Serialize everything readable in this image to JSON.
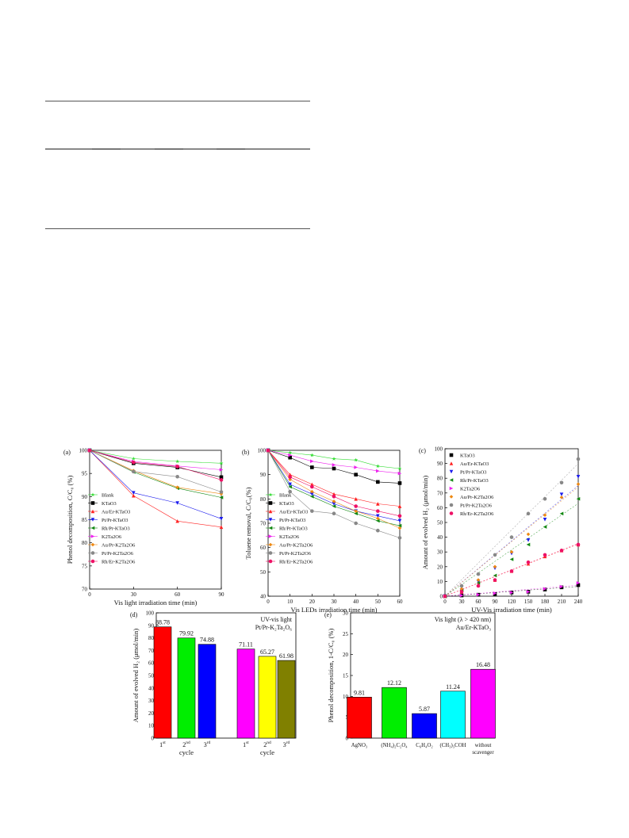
{
  "chart_data": [
    {
      "type": "line",
      "panel_label": "(a)",
      "xlabel": "Vis light irradiation time (min)",
      "ylabel": "Phenol decomposition, C/C₀ (%)",
      "x": [
        0,
        30,
        60,
        90
      ],
      "xlim": [
        0,
        90
      ],
      "xticks": [
        0,
        30,
        60,
        90
      ],
      "ylim": [
        70,
        100
      ],
      "yticks": [
        70,
        75,
        80,
        85,
        90,
        95,
        100
      ],
      "legend_position": "bottom-left",
      "series": [
        {
          "name": "Blank",
          "color": "#33dd33",
          "marker": "star",
          "values": [
            100,
            98.2,
            97.6,
            97.2
          ]
        },
        {
          "name": "KTaO3",
          "color": "#000000",
          "marker": "square",
          "values": [
            100,
            97.2,
            96.3,
            94.2
          ]
        },
        {
          "name": "Au/Er-KTaO3",
          "color": "#ff2222",
          "marker": "triangle-up",
          "values": [
            100,
            90.2,
            84.7,
            83.4
          ]
        },
        {
          "name": "Pt/Pr-KTaO3",
          "color": "#1a1aee",
          "marker": "triangle-down",
          "values": [
            100,
            90.8,
            88.6,
            85.2
          ]
        },
        {
          "name": "Rh/Pr-KTaO3",
          "color": "#118811",
          "marker": "triangle-left",
          "values": [
            100,
            95.3,
            91.8,
            89.8
          ]
        },
        {
          "name": "K2Ta2O6",
          "color": "#ee22ee",
          "marker": "triangle-right",
          "values": [
            100,
            97.6,
            96.6,
            95.8
          ]
        },
        {
          "name": "Au/Pr-K2Ta2O6",
          "color": "#ee8811",
          "marker": "diamond",
          "values": [
            100,
            95.6,
            92.0,
            90.6
          ]
        },
        {
          "name": "Pt/Pr-K2Ta2O6",
          "color": "#888888",
          "marker": "circle",
          "values": [
            100,
            95.4,
            94.3,
            91.0
          ]
        },
        {
          "name": "Rh/Er-K2Ta2O6",
          "color": "#ee1166",
          "marker": "circle",
          "values": [
            100,
            97.4,
            96.5,
            93.6
          ]
        }
      ]
    },
    {
      "type": "line",
      "panel_label": "(b)",
      "xlabel": "Vis LEDs irradiation time (min)",
      "ylabel": "Toluene removal, C/C₀(%)",
      "x": [
        0,
        10,
        20,
        30,
        40,
        50,
        60
      ],
      "xlim": [
        0,
        60
      ],
      "xticks": [
        0,
        10,
        20,
        30,
        40,
        50,
        60
      ],
      "ylim": [
        40,
        100
      ],
      "yticks": [
        40,
        50,
        60,
        70,
        80,
        90,
        100
      ],
      "legend_position": "bottom-left",
      "series": [
        {
          "name": "Blank",
          "color": "#33dd33",
          "marker": "star",
          "values": [
            100,
            99,
            98,
            96.5,
            96,
            93.5,
            92.5
          ]
        },
        {
          "name": "KTaO3",
          "color": "#000000",
          "marker": "square",
          "values": [
            100,
            97,
            93,
            92.5,
            90,
            87,
            86.5
          ]
        },
        {
          "name": "Au/Er-KTaO3",
          "color": "#ff2222",
          "marker": "triangle-up",
          "values": [
            100,
            90,
            86,
            82,
            80,
            78,
            77
          ]
        },
        {
          "name": "Pt/Pr-KTaO3",
          "color": "#1a1aee",
          "marker": "triangle-down",
          "values": [
            100,
            86,
            82,
            78,
            75,
            73,
            71
          ]
        },
        {
          "name": "Rh/Pr-KTaO3",
          "color": "#118811",
          "marker": "triangle-left",
          "values": [
            100,
            85,
            81,
            77,
            74,
            71,
            69
          ]
        },
        {
          "name": "K2Ta2O6",
          "color": "#ee22ee",
          "marker": "triangle-right",
          "values": [
            100,
            98,
            95.5,
            94,
            93,
            91.5,
            90.5
          ]
        },
        {
          "name": "Au/Pr-K2Ta2O6",
          "color": "#ee8811",
          "marker": "diamond",
          "values": [
            100,
            88,
            83,
            79,
            75,
            72,
            68
          ]
        },
        {
          "name": "Pt/Pr-K2Ta2O6",
          "color": "#888888",
          "marker": "circle",
          "values": [
            100,
            83,
            75,
            74,
            70,
            67,
            64
          ]
        },
        {
          "name": "Rh/Er-K2Ta2O6",
          "color": "#ee1166",
          "marker": "circle",
          "values": [
            100,
            89,
            85,
            81,
            77,
            75,
            73
          ]
        }
      ]
    },
    {
      "type": "scatter",
      "panel_label": "(c)",
      "xlabel": "UV-Vis irradiation time (min)",
      "ylabel": "Amount of evolved H₂ (μmol/min)",
      "x": [
        0,
        30,
        60,
        90,
        120,
        150,
        180,
        210,
        240
      ],
      "xlim": [
        0,
        240
      ],
      "xticks": [
        0,
        30,
        60,
        90,
        120,
        150,
        180,
        210,
        240
      ],
      "ylim": [
        0,
        100
      ],
      "yticks": [
        0,
        10,
        20,
        30,
        40,
        50,
        60,
        70,
        80,
        90,
        100
      ],
      "legend_position": "top-left",
      "series": [
        {
          "name": "KTaO3",
          "color": "#000000",
          "marker": "square",
          "values": [
            0,
            0.5,
            1,
            1.5,
            2.5,
            3,
            4.5,
            6,
            7.5
          ]
        },
        {
          "name": "Au/Er-KTaO3",
          "color": "#ff2222",
          "marker": "triangle-up",
          "values": [
            0,
            3,
            8,
            11,
            17,
            22,
            27,
            31,
            35
          ]
        },
        {
          "name": "Pt/Pr-KTaO3",
          "color": "#1a1aee",
          "marker": "triangle-down",
          "values": [
            0,
            4,
            10,
            19,
            29,
            38,
            52,
            69,
            81
          ]
        },
        {
          "name": "Rh/Pr-KTaO3",
          "color": "#118811",
          "marker": "triangle-left",
          "values": [
            0,
            4,
            9,
            14,
            25,
            35,
            47,
            56,
            66
          ]
        },
        {
          "name": "K2Ta2O6",
          "color": "#ee22ee",
          "marker": "triangle-right",
          "values": [
            0,
            0.5,
            1,
            2,
            2.5,
            3,
            5,
            6.5,
            9
          ]
        },
        {
          "name": "Au/Pr-K2Ta2O6",
          "color": "#ee8811",
          "marker": "diamond",
          "values": [
            0,
            5,
            11,
            20,
            30,
            42,
            55,
            67,
            76
          ]
        },
        {
          "name": "Pt/Pr-K2Ta2O6",
          "color": "#888888",
          "marker": "circle",
          "values": [
            0,
            7,
            15,
            28,
            40,
            56,
            66,
            77,
            93
          ]
        },
        {
          "name": "Rh/Er-K2Ta2O6",
          "color": "#ee1166",
          "marker": "circle",
          "values": [
            0,
            3,
            7,
            11,
            17,
            23,
            28,
            31,
            35
          ]
        }
      ]
    },
    {
      "type": "bar",
      "panel_label": "(d)",
      "annotation": [
        "UV-vis light",
        "Pt/Pr-K₂Ta₂O₆"
      ],
      "xlabel": "cycle",
      "ylabel": "Amount of evolved H₂ (μmol/min)",
      "ylim": [
        0,
        100
      ],
      "yticks": [
        0,
        10,
        20,
        30,
        40,
        50,
        60,
        70,
        80,
        90,
        100
      ],
      "categories": [
        "1st",
        "2nd",
        "3rd",
        "1st",
        "2nd",
        "3rd"
      ],
      "values": [
        88.78,
        79.92,
        74.88,
        71.11,
        65.27,
        61.98
      ],
      "value_labels": [
        "88.78",
        "79.92",
        "74.88",
        "71.11",
        "65.27",
        "61.98"
      ],
      "colors": [
        "#ff0000",
        "#00ee00",
        "#0000ff",
        "#ff00ff",
        "#ffff00",
        "#808000"
      ]
    },
    {
      "type": "bar",
      "panel_label": "(e)",
      "annotation": [
        "Vis light (λ > 420 nm)",
        "Au/Er-KTaO₃"
      ],
      "ylabel": "Phenol decomposition, 1-C/C₀ (%)",
      "ylim": [
        0,
        30
      ],
      "yticks": [
        0,
        5,
        10,
        15,
        20,
        25,
        30
      ],
      "categories": [
        "AgNO₃",
        "(NH₄)₂C₂O₄",
        "C₆H₄O₂",
        "(CH₃)₃COH",
        "without scavenger"
      ],
      "values": [
        9.81,
        12.12,
        5.87,
        11.24,
        16.48
      ],
      "value_labels": [
        "9.81",
        "12.12",
        "5.87",
        "11.24",
        "16.48"
      ],
      "colors": [
        "#ff0000",
        "#00ee00",
        "#0000ff",
        "#00ffff",
        "#ff00ff"
      ]
    }
  ]
}
